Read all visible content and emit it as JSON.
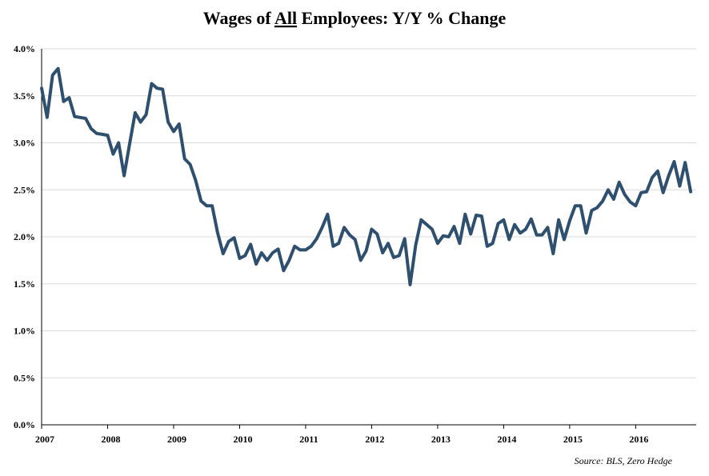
{
  "chart_data": {
    "type": "line",
    "title_parts": [
      "Wages of ",
      "All",
      " Employees: Y/Y % Change"
    ],
    "source": "Source: BLS, Zero Hedge",
    "xlabel": "",
    "ylabel": "",
    "xlim": [
      2007.0,
      2016.917
    ],
    "ylim": [
      0,
      4
    ],
    "yticks": [
      0,
      0.5,
      1,
      1.5,
      2,
      2.5,
      3,
      3.5,
      4
    ],
    "ytick_labels": [
      "0.0%",
      "0.5%",
      "1.0%",
      "1.5%",
      "2.0%",
      "2.5%",
      "3.0%",
      "3.5%",
      "4.0%"
    ],
    "xticks": [
      2007,
      2008,
      2009,
      2010,
      2011,
      2012,
      2013,
      2014,
      2015,
      2016
    ],
    "xtick_labels": [
      "2007",
      "2008",
      "2009",
      "2010",
      "2011",
      "2012",
      "2013",
      "2014",
      "2015",
      "2016"
    ],
    "grid": true,
    "line_color": "#2f4f6f",
    "series": [
      {
        "values": [
          3.58,
          3.27,
          3.72,
          3.79,
          3.44,
          3.48,
          3.28,
          3.27,
          3.26,
          3.15,
          3.1,
          3.09,
          3.08,
          2.88,
          3.0,
          2.65,
          2.99,
          3.32,
          3.22,
          3.3,
          3.63,
          3.58,
          3.57,
          3.22,
          3.12,
          3.2,
          2.83,
          2.77,
          2.6,
          2.38,
          2.33,
          2.33,
          2.04,
          1.82,
          1.95,
          1.99,
          1.77,
          1.8,
          1.92,
          1.71,
          1.83,
          1.75,
          1.83,
          1.87,
          1.64,
          1.75,
          1.9,
          1.86,
          1.86,
          1.9,
          1.98,
          2.1,
          2.24,
          1.9,
          1.93,
          2.1,
          2.02,
          1.97,
          1.75,
          1.85,
          2.08,
          2.03,
          1.83,
          1.93,
          1.78,
          1.8,
          1.98,
          1.49,
          1.91,
          2.18,
          2.13,
          2.08,
          1.93,
          2.01,
          2.0,
          2.11,
          1.93,
          2.24,
          2.03,
          2.23,
          2.22,
          1.9,
          1.93,
          2.14,
          2.18,
          1.97,
          2.13,
          2.04,
          2.08,
          2.19,
          2.02,
          2.02,
          2.1,
          1.82,
          2.18,
          1.97,
          2.17,
          2.33,
          2.33,
          2.04,
          2.28,
          2.31,
          2.38,
          2.5,
          2.4,
          2.58,
          2.45,
          2.37,
          2.33,
          2.47,
          2.48,
          2.63,
          2.7,
          2.47,
          2.65,
          2.8,
          2.54,
          2.79,
          2.48
        ]
      }
    ]
  }
}
